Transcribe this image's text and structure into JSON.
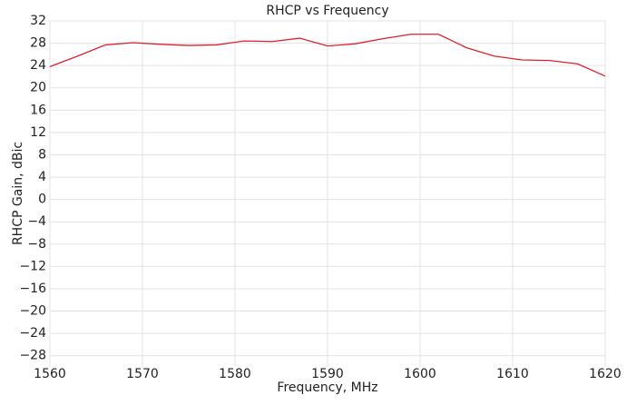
{
  "chart_data": {
    "type": "line",
    "title": "RHCP vs Frequency",
    "xlabel": "Frequency, MHz",
    "ylabel": "RHCP Gain, dBic",
    "x": [
      1560,
      1563,
      1566,
      1569,
      1572,
      1575,
      1578,
      1581,
      1584,
      1587,
      1590,
      1593,
      1596,
      1599,
      1602,
      1605,
      1608,
      1611,
      1614,
      1617,
      1620
    ],
    "series": [
      {
        "name": "RHCP",
        "color": "#e0202c",
        "values": [
          23.8,
          25.7,
          27.7,
          28.1,
          27.8,
          27.6,
          27.7,
          28.4,
          28.3,
          28.9,
          27.5,
          27.9,
          28.8,
          29.6,
          29.6,
          27.2,
          25.7,
          25.0,
          24.9,
          24.3,
          22.1
        ]
      }
    ],
    "xlim": [
      1560,
      1620
    ],
    "xticks": [
      1560,
      1570,
      1580,
      1590,
      1600,
      1610,
      1620
    ],
    "ylim": [
      -30,
      32
    ],
    "yticks": [
      {
        "value": -28,
        "label": "−28"
      },
      {
        "value": -24,
        "label": "−24"
      },
      {
        "value": -20,
        "label": "−20"
      },
      {
        "value": -16,
        "label": "−16"
      },
      {
        "value": -12,
        "label": "−12"
      },
      {
        "value": -8,
        "label": "−8"
      },
      {
        "value": -4,
        "label": "−4"
      },
      0,
      4,
      8,
      12,
      16,
      20,
      24,
      28,
      32
    ],
    "grid": true
  }
}
